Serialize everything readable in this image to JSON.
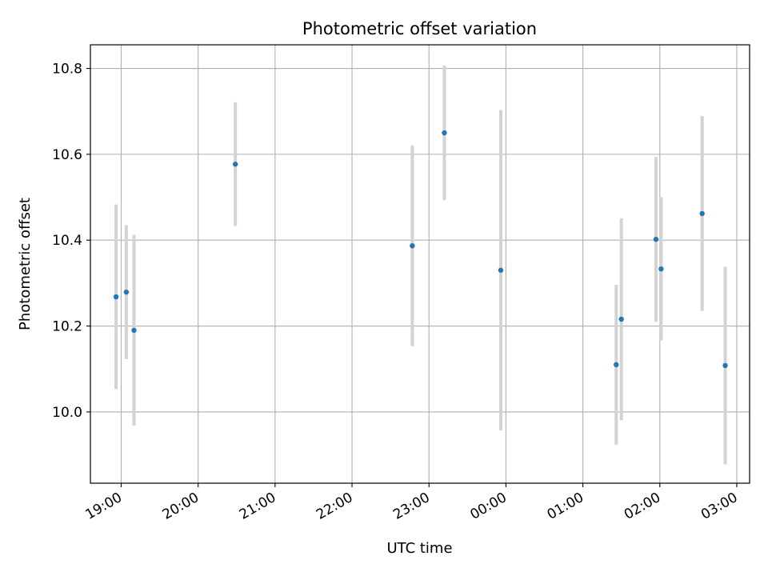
{
  "chart_data": {
    "type": "scatter",
    "title": "Photometric offset variation",
    "xlabel": "UTC time",
    "ylabel": "Photometric offset",
    "grid": true,
    "x_ticks": [
      "19:00",
      "20:00",
      "21:00",
      "22:00",
      "23:00",
      "00:00",
      "01:00",
      "02:00",
      "03:00"
    ],
    "y_ticks": [
      "10.0",
      "10.2",
      "10.4",
      "10.6",
      "10.8"
    ],
    "xlim": [
      "2000-01-01T18:36",
      "2000-01-02T03:10"
    ],
    "ylim": [
      9.834,
      10.855
    ],
    "marker_color": "#1f77b4",
    "errorbar_color": "#d3d3d3",
    "points": [
      {
        "x": "2000-01-01T18:56",
        "y": 10.268,
        "yerr": 0.215
      },
      {
        "x": "2000-01-01T19:04",
        "y": 10.279,
        "yerr": 0.156
      },
      {
        "x": "2000-01-01T19:10",
        "y": 10.19,
        "yerr": 0.222
      },
      {
        "x": "2000-01-01T20:29",
        "y": 10.577,
        "yerr": 0.144
      },
      {
        "x": "2000-01-01T22:47",
        "y": 10.387,
        "yerr": 0.234
      },
      {
        "x": "2000-01-01T23:12",
        "y": 10.65,
        "yerr": 0.157
      },
      {
        "x": "2000-01-01T23:56",
        "y": 10.33,
        "yerr": 0.373
      },
      {
        "x": "2000-01-02T01:26",
        "y": 10.11,
        "yerr": 0.186
      },
      {
        "x": "2000-01-02T01:30",
        "y": 10.216,
        "yerr": 0.235
      },
      {
        "x": "2000-01-02T01:57",
        "y": 10.402,
        "yerr": 0.192
      },
      {
        "x": "2000-01-02T02:01",
        "y": 10.333,
        "yerr": 0.167
      },
      {
        "x": "2000-01-02T02:33",
        "y": 10.462,
        "yerr": 0.227
      },
      {
        "x": "2000-01-02T02:51",
        "y": 10.108,
        "yerr": 0.23
      }
    ]
  }
}
